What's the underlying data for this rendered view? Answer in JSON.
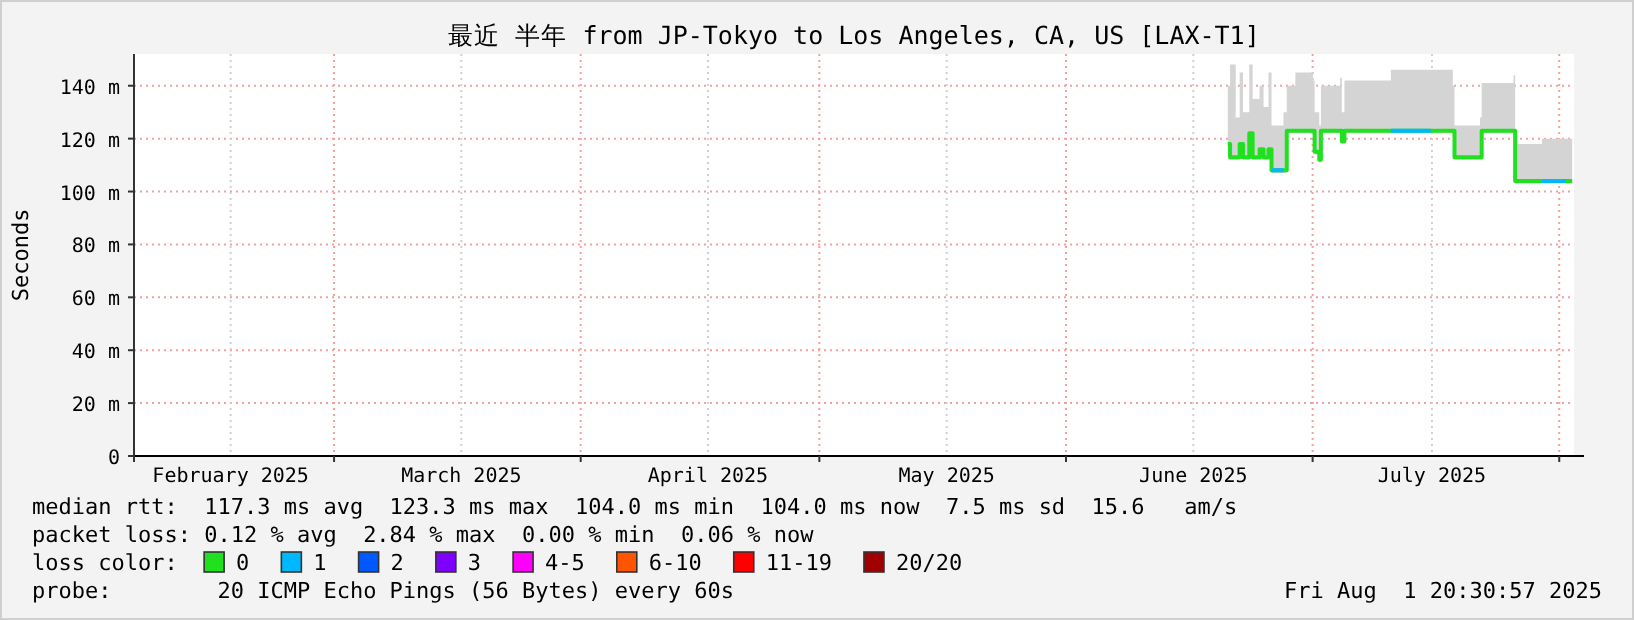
{
  "chart_data": {
    "type": "line",
    "title": "最近 半年 from JP-Tokyo to Los Angeles, CA, US [LAX-T1]",
    "ylabel": "Seconds",
    "legend_title": "loss color:",
    "legend": "bottom",
    "grid": true,
    "xlim": [
      "2025-02-01T20:30",
      "2025-08-01T20:30"
    ],
    "xticks": [
      {
        "value": "2025-02-14",
        "label": "February 2025"
      },
      {
        "value": "2025-02-27",
        "label": null
      },
      {
        "value": "2025-03-15",
        "label": "March 2025"
      },
      {
        "value": "2025-03-30",
        "label": null
      },
      {
        "value": "2025-04-15",
        "label": "April 2025"
      },
      {
        "value": "2025-04-29",
        "label": null
      },
      {
        "value": "2025-05-15",
        "label": "May 2025"
      },
      {
        "value": "2025-05-30",
        "label": null
      },
      {
        "value": "2025-06-15",
        "label": "June 2025"
      },
      {
        "value": "2025-06-30",
        "label": null
      },
      {
        "value": "2025-07-15",
        "label": "July 2025"
      },
      {
        "value": "2025-07-31",
        "label": null
      }
    ],
    "ylim": [
      0,
      152
    ],
    "yticks": [
      0,
      {
        "value": 20,
        "label": "20 m"
      },
      {
        "value": 40,
        "label": "40 m"
      },
      {
        "value": 60,
        "label": "60 m"
      },
      {
        "value": 80,
        "label": "80 m"
      },
      {
        "value": 100,
        "label": "100 m"
      },
      {
        "value": 120,
        "label": "120 m"
      },
      {
        "value": 140,
        "label": "140 m"
      }
    ],
    "x": [
      "2025-06-19T08:00",
      "2025-06-19T15:00",
      "2025-06-20T08:00",
      "2025-06-20T20:00",
      "2025-06-21T06:00",
      "2025-06-22T01:00",
      "2025-06-22T11:00",
      "2025-06-23T08:00",
      "2025-06-23T20:00",
      "2025-06-24T11:00",
      "2025-06-24T20:00",
      "2025-06-26T08:00",
      "2025-06-26T18:00",
      "2025-06-27T20:00",
      "2025-06-30T01:00",
      "2025-06-30T06:00",
      "2025-06-30T20:00",
      "2025-07-01T01:00",
      "2025-07-03T11:00",
      "2025-07-03T16:00",
      "2025-07-04T00:00",
      "2025-07-09T20:00",
      "2025-07-17T15:00",
      "2025-07-17T20:00",
      "2025-07-21T01:00",
      "2025-07-21T06:00",
      "2025-07-25T06:00",
      "2025-07-25T11:00",
      "2025-07-28T20:00",
      "2025-08-01T15:00"
    ],
    "series": [
      {
        "name": "0",
        "color": "#20e020",
        "values": [
          118,
          113,
          113,
          118,
          113,
          122,
          113,
          116,
          113,
          116,
          108,
          108,
          123,
          123,
          123,
          115,
          112,
          123,
          123,
          119,
          123,
          123,
          123,
          113,
          113,
          123,
          123,
          104,
          104,
          104
        ],
        "lower": [
          113,
          112,
          112,
          113,
          112,
          113,
          112,
          112,
          112,
          112,
          107,
          107,
          122,
          122,
          122,
          114,
          111,
          122,
          122,
          118,
          122,
          122,
          122,
          112,
          112,
          122,
          122,
          103,
          103,
          103
        ],
        "upper": [
          140,
          148,
          128,
          145,
          130,
          148,
          135,
          140,
          132,
          145,
          125,
          130,
          140,
          145,
          142,
          130,
          125,
          140,
          143,
          130,
          142,
          146,
          140,
          125,
          128,
          141,
          144,
          118,
          120,
          119
        ]
      },
      {
        "name": "1",
        "color": "#00b8ff",
        "x": [
          "2025-06-24T20:00",
          "2025-06-26T08:00",
          "2025-06-26T09:00",
          "2025-07-09T20:00",
          "2025-07-14T20:00",
          "2025-07-15T00:00",
          "2025-07-28T20:00",
          "2025-07-31T20:00"
        ],
        "values": [
          108,
          108,
          null,
          123,
          123,
          null,
          104,
          104
        ]
      },
      {
        "name": "2",
        "color": "#0059ff",
        "values": [
          null,
          null,
          null,
          null,
          null,
          null,
          null,
          null,
          null,
          null,
          null,
          null,
          null,
          null,
          null,
          null,
          null,
          null,
          null,
          null,
          null,
          null,
          null,
          null,
          null,
          null,
          null,
          null,
          null,
          null
        ]
      },
      {
        "name": "3",
        "color": "#7e00ff",
        "values": [
          null,
          null,
          null,
          null,
          null,
          null,
          null,
          null,
          null,
          null,
          null,
          null,
          null,
          null,
          null,
          null,
          null,
          null,
          null,
          null,
          null,
          null,
          null,
          null,
          null,
          null,
          null,
          null,
          null,
          null
        ]
      },
      {
        "name": "4-5",
        "color": "#ff00ff",
        "values": [
          null,
          null,
          null,
          null,
          null,
          null,
          null,
          null,
          null,
          null,
          null,
          null,
          null,
          null,
          null,
          null,
          null,
          null,
          null,
          null,
          null,
          null,
          null,
          null,
          null,
          null,
          null,
          null,
          null,
          null
        ]
      },
      {
        "name": "6-10",
        "color": "#ff5500",
        "values": [
          null,
          null,
          null,
          null,
          null,
          null,
          null,
          null,
          null,
          null,
          null,
          null,
          null,
          null,
          null,
          null,
          null,
          null,
          null,
          null,
          null,
          null,
          null,
          null,
          null,
          null,
          null,
          null,
          null,
          null
        ]
      },
      {
        "name": "11-19",
        "color": "#ff0000",
        "values": [
          null,
          null,
          null,
          null,
          null,
          null,
          null,
          null,
          null,
          null,
          null,
          null,
          null,
          null,
          null,
          null,
          null,
          null,
          null,
          null,
          null,
          null,
          null,
          null,
          null,
          null,
          null,
          null,
          null,
          null
        ]
      },
      {
        "name": "20/20",
        "color": "#a10000",
        "values": [
          null,
          null,
          null,
          null,
          null,
          null,
          null,
          null,
          null,
          null,
          null,
          null,
          null,
          null,
          null,
          null,
          null,
          null,
          null,
          null,
          null,
          null,
          null,
          null,
          null,
          null,
          null,
          null,
          null,
          null
        ]
      }
    ],
    "annotations": [
      "median rtt:  117.3 ms avg  123.3 ms max  104.0 ms min  104.0 ms now  7.5 ms sd  15.6   am/s",
      "packet loss: 0.12 % avg  2.84 % max  0.00 % min  0.06 % now",
      "probe:        20 ICMP Echo Pings (56 Bytes) every 60s",
      "Fri Aug  1 20:30:57 2025"
    ]
  }
}
